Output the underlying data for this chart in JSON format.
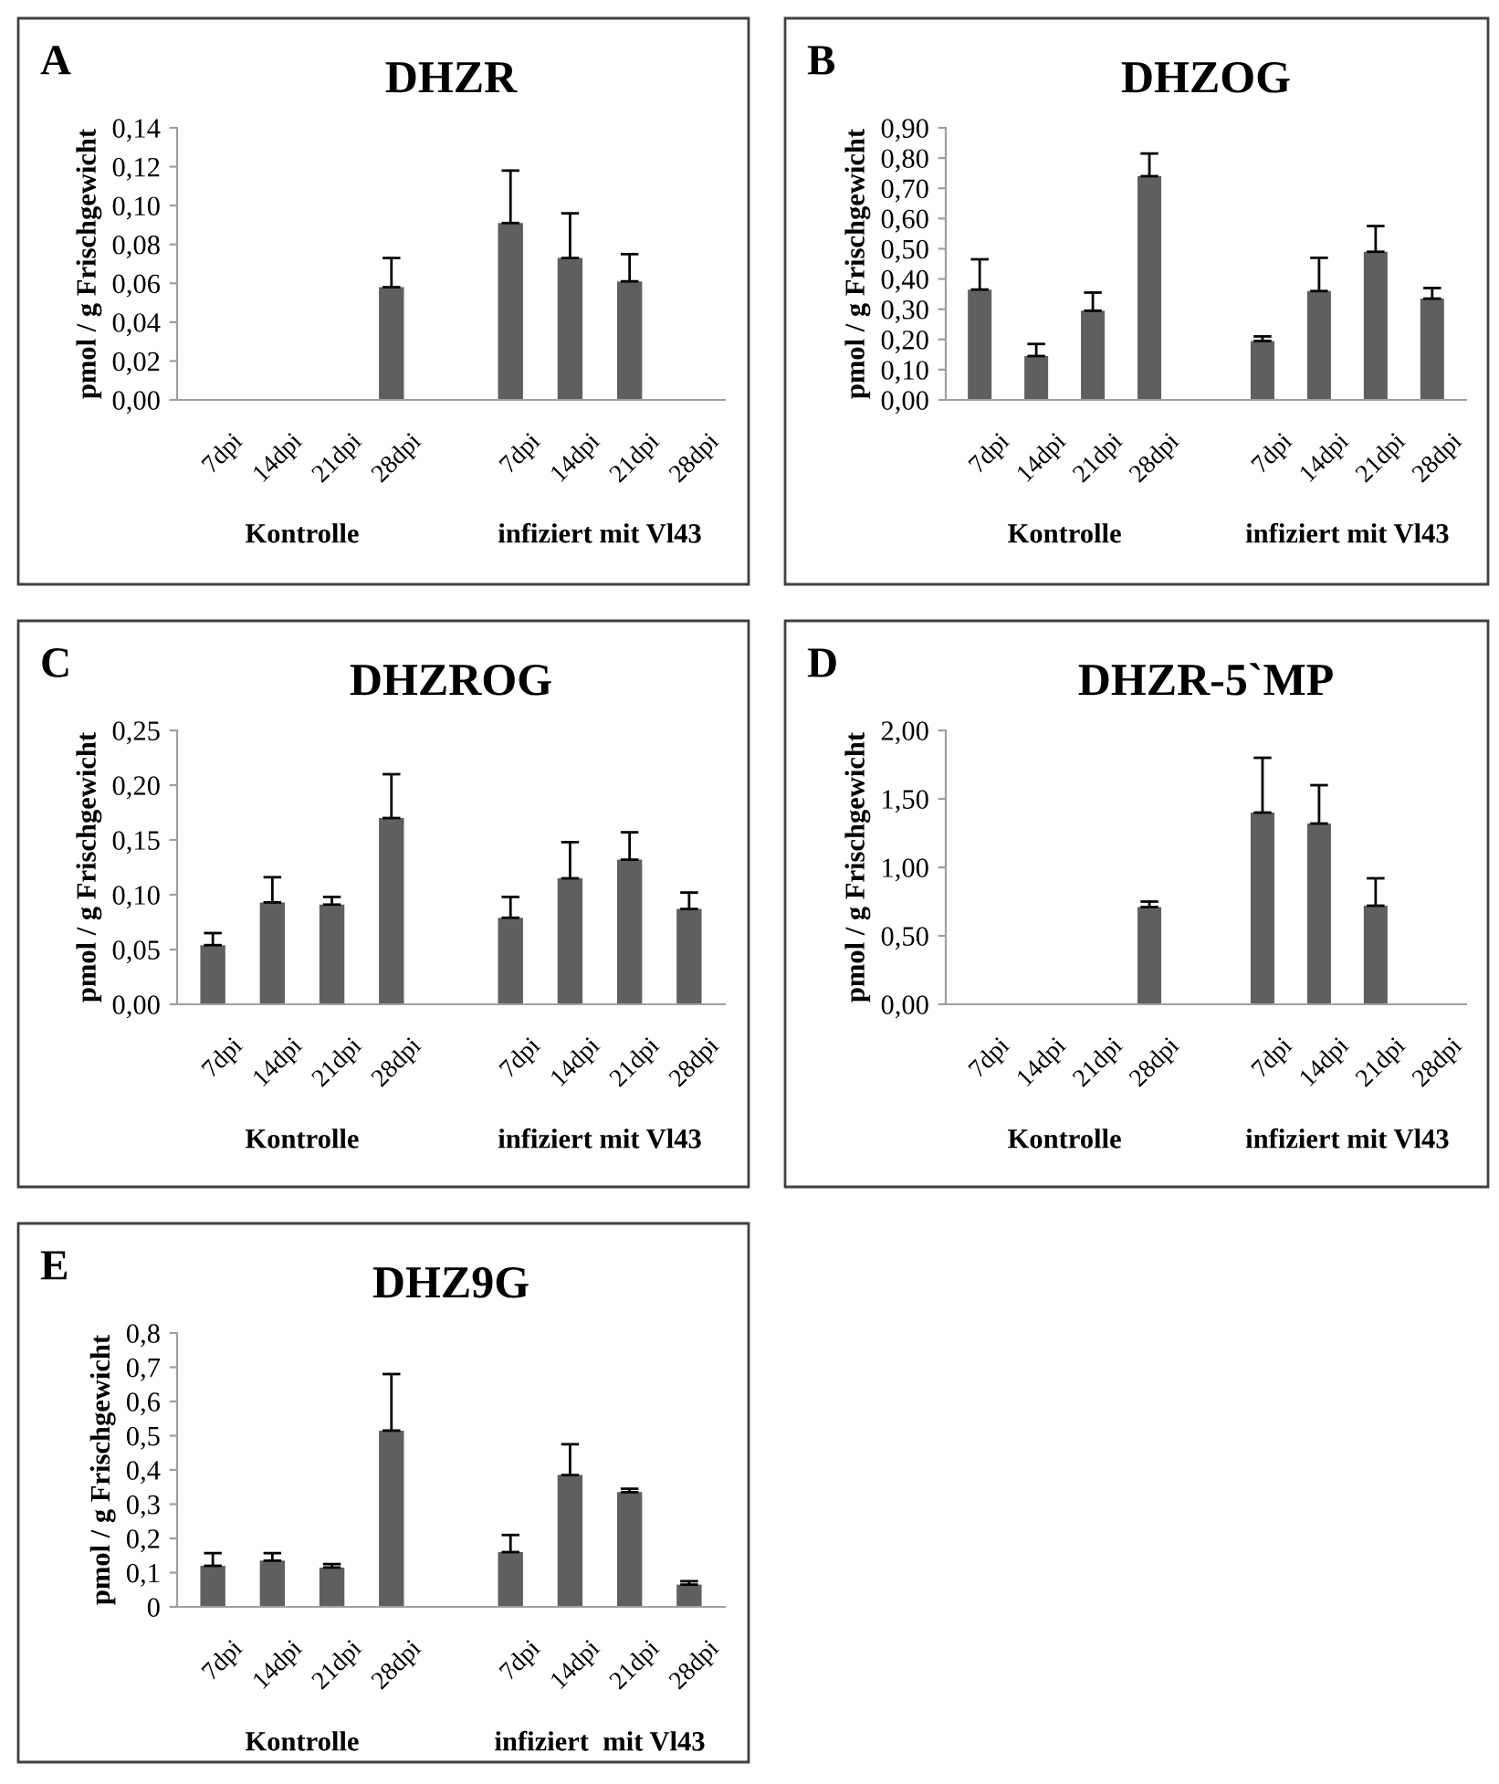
{
  "chart_data": [
    {
      "type": "bar",
      "title": "DHZR",
      "ylabel": "pmol / g Frischgewicht",
      "annotations": [
        "A",
        "Kontrolle",
        "infiziert mit Vl43"
      ],
      "categories": [
        "7dpi",
        "14dpi",
        "21dpi",
        "28dpi",
        null,
        "7dpi",
        "14dpi",
        "21dpi",
        "28dpi"
      ],
      "color": "#5f5f5f",
      "values": [
        null,
        null,
        null,
        0.058,
        null,
        0.091,
        0.073,
        0.061,
        null
      ],
      "errors": [
        null,
        null,
        null,
        [
          0.058,
          0.073
        ],
        null,
        [
          0.091,
          0.118
        ],
        [
          0.073,
          0.096
        ],
        [
          0.061,
          0.075
        ],
        null
      ],
      "ylim": [
        0,
        0.14
      ],
      "yticks": [
        {
          "value": 0,
          "label": "0,00"
        },
        {
          "value": 0.02,
          "label": "0,02"
        },
        {
          "value": 0.04,
          "label": "0,04"
        },
        {
          "value": 0.06,
          "label": "0,06"
        },
        {
          "value": 0.08,
          "label": "0,08"
        },
        {
          "value": 0.1,
          "label": "0,10"
        },
        {
          "value": 0.12,
          "label": "0,12"
        },
        {
          "value": 0.14,
          "label": "0,14"
        }
      ],
      "grid": false,
      "legend": false
    },
    {
      "type": "bar",
      "title": "DHZOG",
      "ylabel": "pmol / g Frischgewicht",
      "annotations": [
        "B",
        "Kontrolle",
        "infiziert mit Vl43"
      ],
      "categories": [
        "7dpi",
        "14dpi",
        "21dpi",
        "28dpi",
        null,
        "7dpi",
        "14dpi",
        "21dpi",
        "28dpi"
      ],
      "color": "#5f5f5f",
      "values": [
        0.365,
        0.145,
        0.295,
        0.74,
        null,
        0.195,
        0.36,
        0.49,
        0.335
      ],
      "errors": [
        [
          0.365,
          0.465
        ],
        [
          0.145,
          0.185
        ],
        [
          0.295,
          0.355
        ],
        [
          0.74,
          0.815
        ],
        null,
        [
          0.195,
          0.21
        ],
        [
          0.36,
          0.47
        ],
        [
          0.49,
          0.575
        ],
        [
          0.335,
          0.37
        ]
      ],
      "ylim": [
        0,
        0.9
      ],
      "yticks": [
        {
          "value": 0,
          "label": "0,00"
        },
        {
          "value": 0.1,
          "label": "0,10"
        },
        {
          "value": 0.2,
          "label": "0,20"
        },
        {
          "value": 0.3,
          "label": "0,30"
        },
        {
          "value": 0.4,
          "label": "0,40"
        },
        {
          "value": 0.5,
          "label": "0,50"
        },
        {
          "value": 0.6,
          "label": "0,60"
        },
        {
          "value": 0.7,
          "label": "0,70"
        },
        {
          "value": 0.8,
          "label": "0,80"
        },
        {
          "value": 0.9,
          "label": "0,90"
        }
      ],
      "grid": false,
      "legend": false
    },
    {
      "type": "bar",
      "title": "DHZROG",
      "ylabel": "pmol / g Frischgewicht",
      "annotations": [
        "C",
        "Kontrolle",
        "infiziert mit Vl43"
      ],
      "categories": [
        "7dpi",
        "14dpi",
        "21dpi",
        "28dpi",
        null,
        "7dpi",
        "14dpi",
        "21dpi",
        "28dpi"
      ],
      "color": "#5f5f5f",
      "values": [
        0.054,
        0.093,
        0.091,
        0.17,
        null,
        0.079,
        0.115,
        0.132,
        0.087
      ],
      "errors": [
        [
          0.054,
          0.065
        ],
        [
          0.093,
          0.116
        ],
        [
          0.091,
          0.098
        ],
        [
          0.17,
          0.21
        ],
        null,
        [
          0.079,
          0.098
        ],
        [
          0.115,
          0.148
        ],
        [
          0.132,
          0.157
        ],
        [
          0.087,
          0.102
        ]
      ],
      "ylim": [
        0,
        0.25
      ],
      "yticks": [
        {
          "value": 0,
          "label": "0,00"
        },
        {
          "value": 0.05,
          "label": "0,05"
        },
        {
          "value": 0.1,
          "label": "0,10"
        },
        {
          "value": 0.15,
          "label": "0,15"
        },
        {
          "value": 0.2,
          "label": "0,20"
        },
        {
          "value": 0.25,
          "label": "0,25"
        }
      ],
      "grid": false,
      "legend": false
    },
    {
      "type": "bar",
      "title": "DHZR-5`MP",
      "ylabel": "pmol / g Frischgewicht",
      "annotations": [
        "D",
        "Kontrolle",
        "infiziert mit Vl43"
      ],
      "categories": [
        "7dpi",
        "14dpi",
        "21dpi",
        "28dpi",
        null,
        "7dpi",
        "14dpi",
        "21dpi",
        "28dpi"
      ],
      "color": "#5f5f5f",
      "values": [
        null,
        null,
        null,
        0.71,
        null,
        1.4,
        1.32,
        0.72,
        null
      ],
      "errors": [
        null,
        null,
        null,
        [
          0.71,
          0.75
        ],
        null,
        [
          1.4,
          1.8
        ],
        [
          1.32,
          1.6
        ],
        [
          0.72,
          0.92
        ],
        null
      ],
      "ylim": [
        0,
        2.0
      ],
      "yticks": [
        {
          "value": 0,
          "label": "0,00"
        },
        {
          "value": 0.5,
          "label": "0,50"
        },
        {
          "value": 1.0,
          "label": "1,00"
        },
        {
          "value": 1.5,
          "label": "1,50"
        },
        {
          "value": 2.0,
          "label": "2,00"
        }
      ],
      "grid": false,
      "legend": false
    },
    {
      "type": "bar",
      "title": "DHZ9G",
      "ylabel": "pmol / g Frischgewicht",
      "annotations": [
        "E",
        "Kontrolle",
        "infiziert  mit Vl43"
      ],
      "categories": [
        "7dpi",
        "14dpi",
        "21dpi",
        "28dpi",
        null,
        "7dpi",
        "14dpi",
        "21dpi",
        "28dpi"
      ],
      "color": "#5f5f5f",
      "values": [
        0.12,
        0.135,
        0.115,
        0.515,
        null,
        0.16,
        0.385,
        0.335,
        0.065
      ],
      "errors": [
        [
          0.12,
          0.157
        ],
        [
          0.135,
          0.157
        ],
        [
          0.115,
          0.125
        ],
        [
          0.515,
          0.68
        ],
        null,
        [
          0.16,
          0.21
        ],
        [
          0.385,
          0.475
        ],
        [
          0.335,
          0.345
        ],
        [
          0.065,
          0.075
        ]
      ],
      "ylim": [
        0,
        0.8
      ],
      "yticks": [
        0,
        {
          "value": 0.1,
          "label": "0,1"
        },
        {
          "value": 0.2,
          "label": "0,2"
        },
        {
          "value": 0.3,
          "label": "0,3"
        },
        {
          "value": 0.4,
          "label": "0,4"
        },
        {
          "value": 0.5,
          "label": "0,5"
        },
        {
          "value": 0.6,
          "label": "0,6"
        },
        {
          "value": 0.7,
          "label": "0,7"
        },
        {
          "value": 0.8,
          "label": "0,8"
        }
      ],
      "grid": false,
      "legend": false
    }
  ]
}
